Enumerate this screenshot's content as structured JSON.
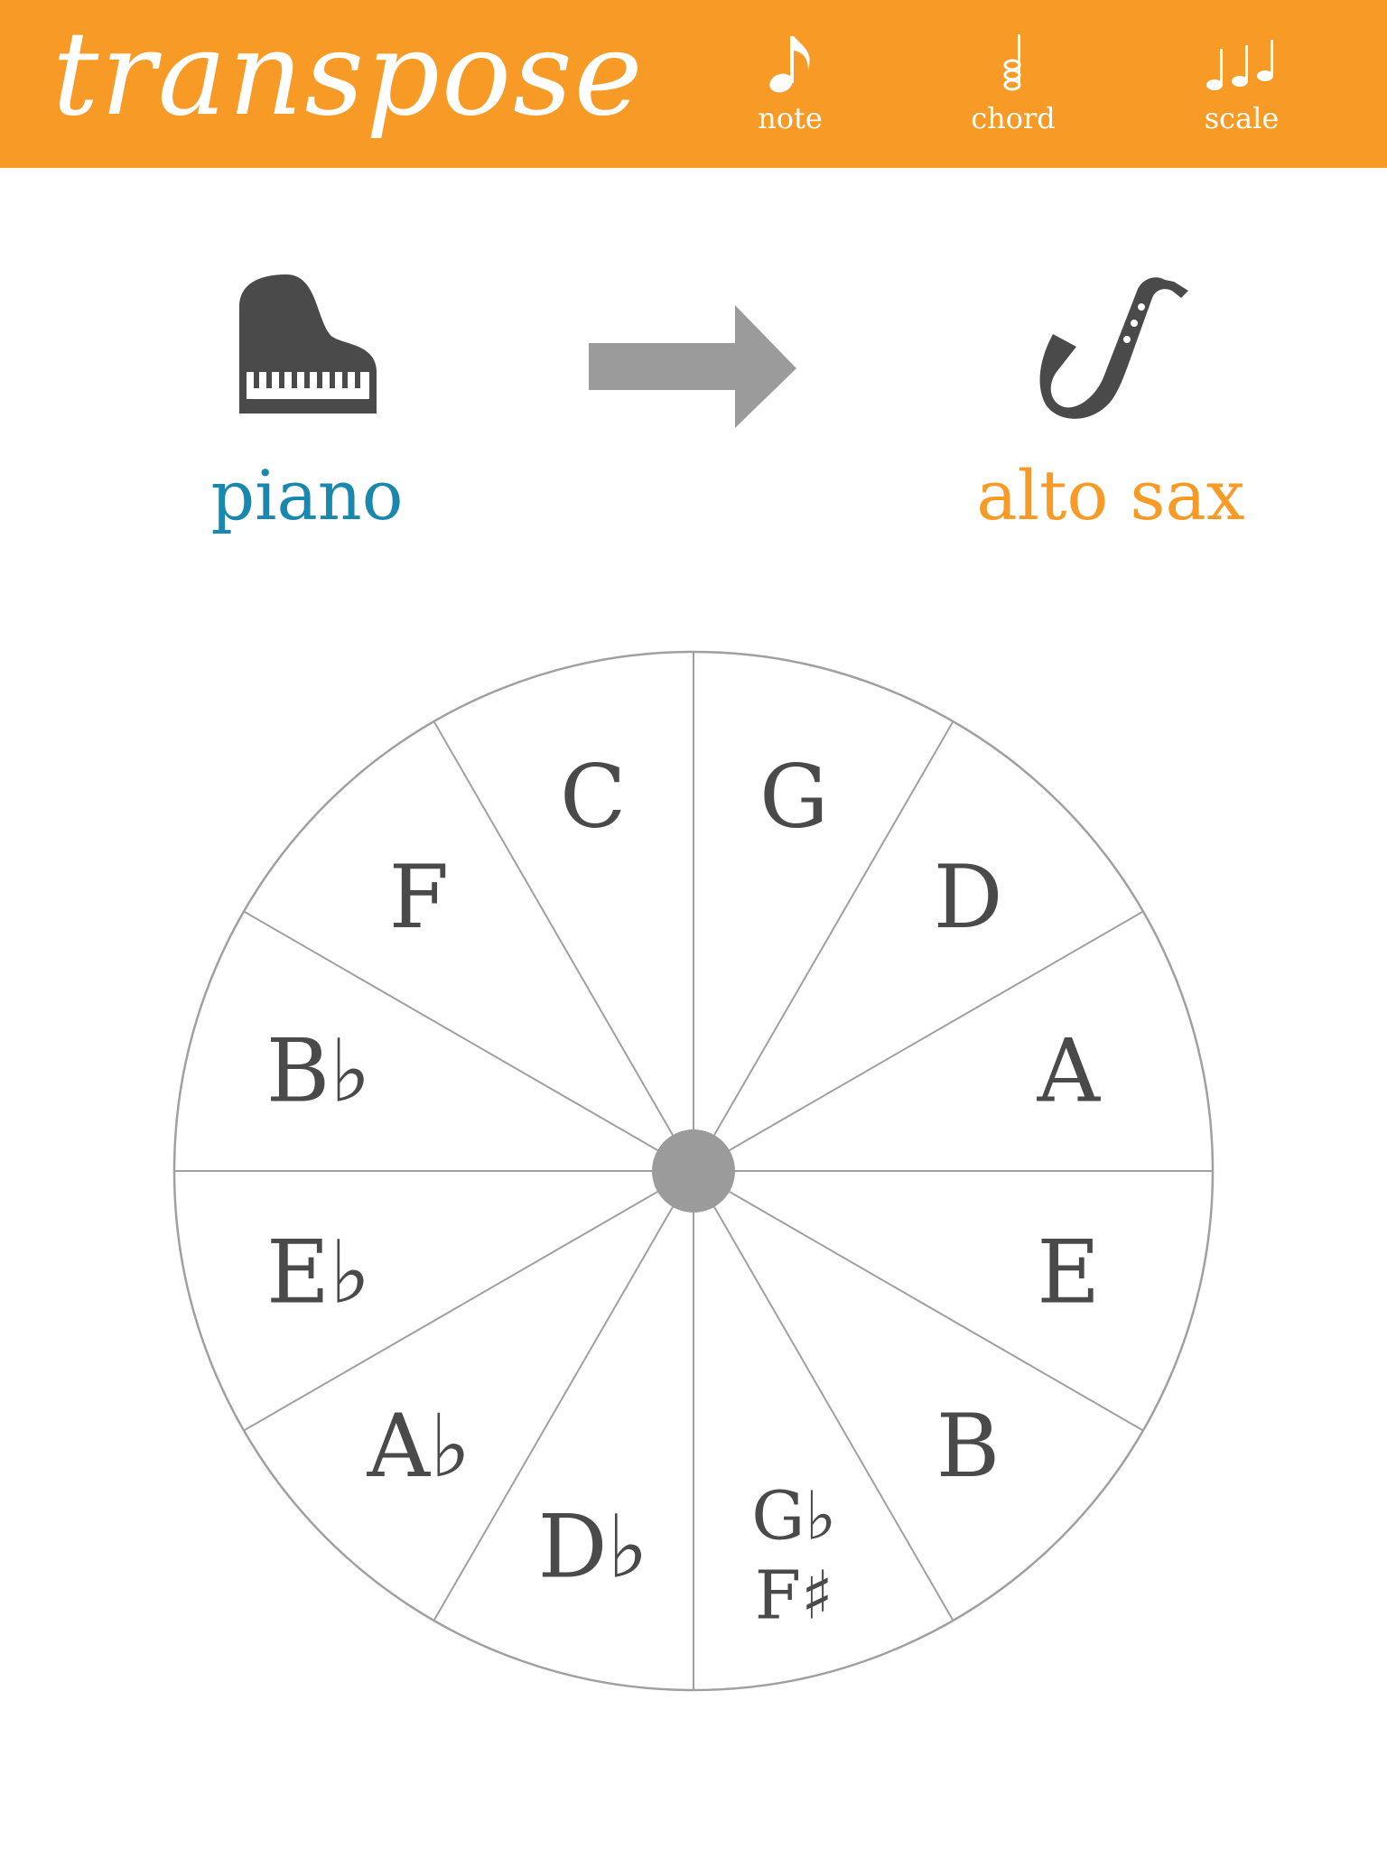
{
  "app": {
    "title": "transpose"
  },
  "nav": {
    "note": {
      "label": "note",
      "icon": "eighth-note-icon"
    },
    "chord": {
      "label": "chord",
      "icon": "chord-icon"
    },
    "scale": {
      "label": "scale",
      "icon": "scale-notes-icon"
    }
  },
  "transpose": {
    "from": {
      "name": "piano",
      "icon": "grand-piano-icon",
      "color": "#1A87AF"
    },
    "arrow_icon": "right-arrow-icon",
    "to": {
      "name": "alto sax",
      "icon": "saxophone-icon",
      "color": "#F89A26"
    }
  },
  "colors": {
    "accent": "#F89A26",
    "from_blue": "#1A87AF",
    "icon_gray": "#4a4a4a",
    "arrow_gray": "#9b9b9b",
    "wheel_lines": "#a0a0a0"
  },
  "circle_of_fifths": {
    "keys": [
      {
        "label": "C"
      },
      {
        "label": "G"
      },
      {
        "label": "D"
      },
      {
        "label": "A"
      },
      {
        "label": "E"
      },
      {
        "label": "B"
      },
      {
        "label": "G♭",
        "alt": "F♯"
      },
      {
        "label": "D♭"
      },
      {
        "label": "A♭"
      },
      {
        "label": "E♭"
      },
      {
        "label": "B♭"
      },
      {
        "label": "F"
      }
    ]
  }
}
